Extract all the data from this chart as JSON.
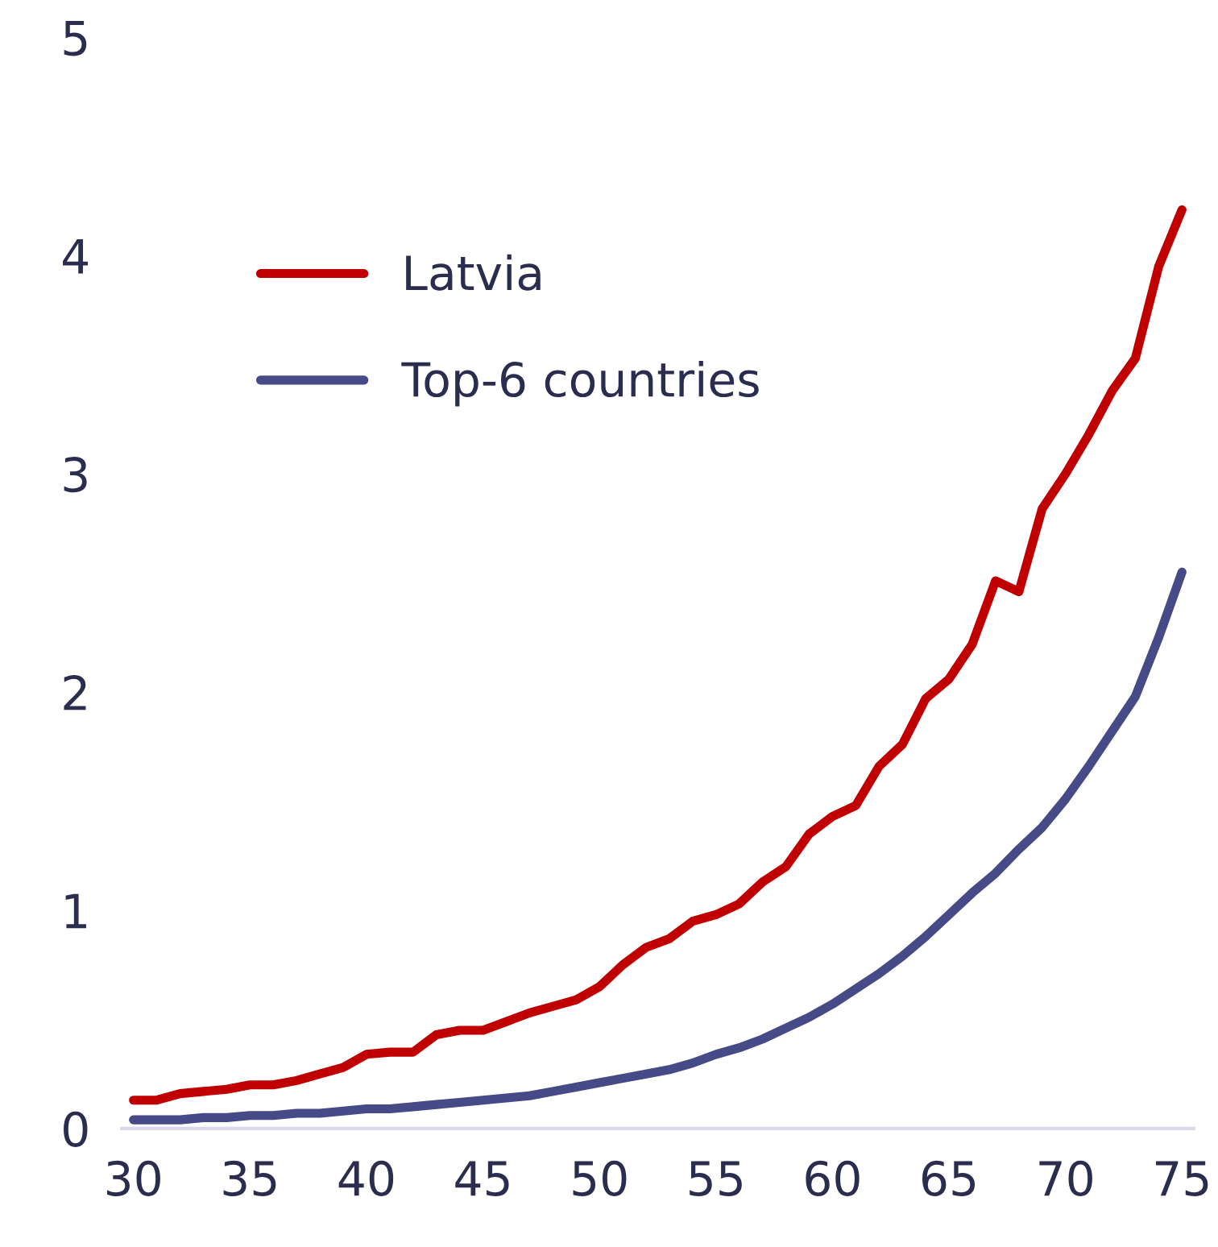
{
  "chart_data": {
    "type": "line",
    "x": [
      30,
      31,
      32,
      33,
      34,
      35,
      36,
      37,
      38,
      39,
      40,
      41,
      42,
      43,
      44,
      45,
      46,
      47,
      48,
      49,
      50,
      51,
      52,
      53,
      54,
      55,
      56,
      57,
      58,
      59,
      60,
      61,
      62,
      63,
      64,
      65,
      66,
      67,
      68,
      69,
      70,
      71,
      72,
      73,
      74,
      75
    ],
    "series": [
      {
        "name": "Latvia",
        "color": "#c00000",
        "values": [
          0.13,
          0.13,
          0.16,
          0.17,
          0.18,
          0.2,
          0.2,
          0.22,
          0.25,
          0.28,
          0.34,
          0.35,
          0.35,
          0.43,
          0.45,
          0.45,
          0.49,
          0.53,
          0.56,
          0.59,
          0.65,
          0.75,
          0.83,
          0.87,
          0.95,
          0.98,
          1.03,
          1.13,
          1.2,
          1.35,
          1.43,
          1.48,
          1.66,
          1.76,
          1.97,
          2.06,
          2.22,
          2.51,
          2.46,
          2.84,
          3.0,
          3.18,
          3.38,
          3.53,
          3.95,
          4.21
        ]
      },
      {
        "name": "Top-6 countries",
        "color": "#464a87",
        "values": [
          0.04,
          0.04,
          0.04,
          0.05,
          0.05,
          0.06,
          0.06,
          0.07,
          0.07,
          0.08,
          0.09,
          0.09,
          0.1,
          0.11,
          0.12,
          0.13,
          0.14,
          0.15,
          0.17,
          0.19,
          0.21,
          0.23,
          0.25,
          0.27,
          0.3,
          0.34,
          0.37,
          0.41,
          0.46,
          0.51,
          0.57,
          0.64,
          0.71,
          0.79,
          0.88,
          0.98,
          1.08,
          1.17,
          1.28,
          1.38,
          1.51,
          1.66,
          1.82,
          1.98,
          2.25,
          2.55
        ]
      }
    ],
    "xlim": [
      29.5,
      75.5
    ],
    "xticks": [
      30,
      35,
      40,
      45,
      50,
      55,
      60,
      65,
      70,
      75
    ],
    "ylim": [
      0,
      5
    ],
    "yticks": [
      0,
      1,
      2,
      3,
      4,
      5
    ],
    "grid": false,
    "legend": "top left",
    "marker": "none",
    "line_style": "solid"
  }
}
